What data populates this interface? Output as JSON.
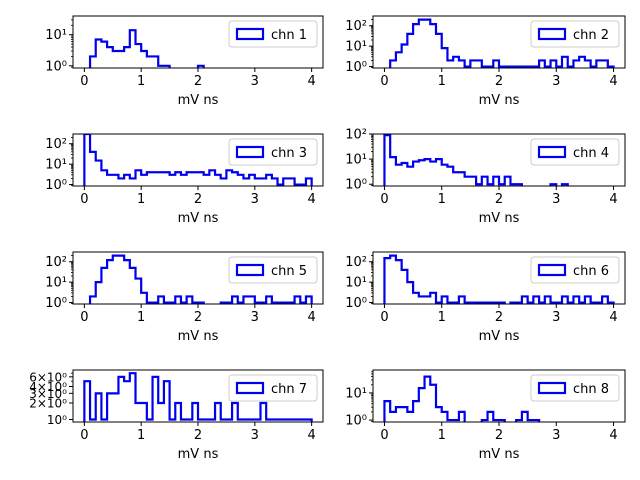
{
  "chart_data": [
    {
      "type": "step-histogram",
      "legend": "chn 1",
      "xlabel": "mV ns",
      "xlim": [
        -0.2,
        4.2
      ],
      "ylog": true,
      "ylim": [
        0.85,
        40
      ],
      "yticks": [
        {
          "v": 1,
          "label": "10⁰"
        },
        {
          "v": 10,
          "label": "10¹"
        }
      ],
      "xticks": [
        0,
        1,
        2,
        3,
        4
      ],
      "bins": {
        "start": 0,
        "width": 0.1
      },
      "values": [
        0,
        2,
        7,
        6,
        4,
        3,
        3,
        4,
        14,
        5,
        3,
        2,
        2,
        1,
        1,
        0,
        0,
        0,
        0,
        0,
        1
      ]
    },
    {
      "type": "step-histogram",
      "legend": "chn 2",
      "xlabel": "mV ns",
      "xlim": [
        -0.2,
        4.2
      ],
      "ylog": true,
      "ylim": [
        0.85,
        300
      ],
      "yticks": [
        {
          "v": 1,
          "label": "10⁰"
        },
        {
          "v": 10,
          "label": "10¹"
        },
        {
          "v": 100,
          "label": "10²"
        }
      ],
      "xticks": [
        0,
        1,
        2,
        3,
        4
      ],
      "bins": {
        "start": 0,
        "width": 0.1
      },
      "values": [
        0,
        2,
        5,
        12,
        40,
        120,
        200,
        200,
        120,
        40,
        8,
        2,
        3,
        2,
        1,
        2,
        2,
        1,
        1,
        2,
        1,
        1,
        1,
        1,
        1,
        1,
        1,
        2,
        1,
        2,
        1,
        3,
        1,
        2,
        3,
        2,
        1,
        2,
        2,
        1
      ]
    },
    {
      "type": "step-histogram",
      "legend": "chn 3",
      "xlabel": "mV ns",
      "xlim": [
        -0.2,
        4.2
      ],
      "ylog": true,
      "ylim": [
        0.85,
        300
      ],
      "yticks": [
        {
          "v": 1,
          "label": "10⁰"
        },
        {
          "v": 10,
          "label": "10¹"
        },
        {
          "v": 100,
          "label": "10²"
        }
      ],
      "xticks": [
        0,
        1,
        2,
        3,
        4
      ],
      "bins": {
        "start": 0,
        "width": 0.1
      },
      "values": [
        300,
        40,
        15,
        5,
        3,
        3,
        2,
        3,
        2,
        5,
        3,
        4,
        4,
        4,
        4,
        3,
        4,
        3,
        4,
        4,
        4,
        3,
        5,
        3,
        2,
        5,
        4,
        3,
        2,
        3,
        2,
        2,
        3,
        2,
        1,
        2,
        2,
        1,
        1,
        2
      ]
    },
    {
      "type": "step-histogram",
      "legend": "chn 4",
      "xlabel": "mV ns",
      "xlim": [
        -0.2,
        4.2
      ],
      "ylog": true,
      "ylim": [
        0.85,
        100
      ],
      "yticks": [
        {
          "v": 1,
          "label": "10⁰"
        },
        {
          "v": 10,
          "label": "10¹"
        },
        {
          "v": 100,
          "label": "10²"
        }
      ],
      "xticks": [
        0,
        1,
        2,
        3,
        4
      ],
      "bins": {
        "start": 0,
        "width": 0.1
      },
      "values": [
        90,
        12,
        6,
        7,
        5,
        8,
        9,
        10,
        8,
        10,
        6,
        5,
        3,
        3,
        2,
        2,
        1,
        2,
        1,
        2,
        1,
        2,
        1,
        1,
        0,
        0,
        0,
        0,
        0,
        1,
        0,
        1
      ]
    },
    {
      "type": "step-histogram",
      "legend": "chn 5",
      "xlabel": "mV ns",
      "xlim": [
        -0.2,
        4.2
      ],
      "ylog": true,
      "ylim": [
        0.85,
        300
      ],
      "yticks": [
        {
          "v": 1,
          "label": "10⁰"
        },
        {
          "v": 10,
          "label": "10¹"
        },
        {
          "v": 100,
          "label": "10²"
        }
      ],
      "xticks": [
        0,
        1,
        2,
        3,
        4
      ],
      "bins": {
        "start": 0,
        "width": 0.1
      },
      "values": [
        0,
        2,
        10,
        50,
        120,
        200,
        200,
        120,
        50,
        15,
        3,
        1,
        1,
        2,
        1,
        1,
        2,
        1,
        2,
        1,
        1,
        0,
        0,
        0,
        1,
        1,
        2,
        1,
        2,
        2,
        1,
        1,
        2,
        1,
        1,
        1,
        1,
        2,
        1,
        2
      ]
    },
    {
      "type": "step-histogram",
      "legend": "chn 6",
      "xlabel": "mV ns",
      "xlim": [
        -0.2,
        4.2
      ],
      "ylog": true,
      "ylim": [
        0.85,
        300
      ],
      "yticks": [
        {
          "v": 1,
          "label": "10⁰"
        },
        {
          "v": 10,
          "label": "10¹"
        },
        {
          "v": 100,
          "label": "10²"
        }
      ],
      "xticks": [
        0,
        1,
        2,
        3,
        4
      ],
      "bins": {
        "start": 0,
        "width": 0.1
      },
      "values": [
        150,
        200,
        120,
        40,
        10,
        3,
        2,
        2,
        3,
        1,
        2,
        1,
        1,
        2,
        1,
        1,
        1,
        1,
        1,
        1,
        1,
        0,
        1,
        1,
        2,
        1,
        2,
        1,
        2,
        1,
        1,
        2,
        1,
        2,
        1,
        2,
        1,
        1,
        2,
        1
      ]
    },
    {
      "type": "step-histogram",
      "legend": "chn 7",
      "xlabel": "mV ns",
      "xlim": [
        -0.2,
        4.2
      ],
      "ylog": true,
      "ylim": [
        0.9,
        8
      ],
      "yticks": [
        {
          "v": 1,
          "label": "10⁰"
        },
        {
          "v": 2,
          "label": "2×10⁰"
        },
        {
          "v": 3,
          "label": "3×10⁰"
        },
        {
          "v": 4,
          "label": "4×10⁰"
        },
        {
          "v": 6,
          "label": "6×10⁰"
        }
      ],
      "xticks": [
        0,
        1,
        2,
        3,
        4
      ],
      "bins": {
        "start": 0,
        "width": 0.1
      },
      "values": [
        5,
        1,
        3,
        1,
        3,
        3,
        6,
        5,
        7,
        2,
        2,
        1,
        6,
        2,
        5,
        1,
        2,
        1,
        1,
        2,
        1,
        1,
        1,
        2,
        1,
        1,
        2,
        1,
        1,
        1,
        1,
        2,
        1,
        1,
        1,
        1,
        1,
        1,
        1,
        1
      ]
    },
    {
      "type": "step-histogram",
      "legend": "chn 8",
      "xlabel": "mV ns",
      "xlim": [
        -0.2,
        4.2
      ],
      "ylog": true,
      "ylim": [
        0.85,
        70
      ],
      "yticks": [
        {
          "v": 1,
          "label": "10⁰"
        },
        {
          "v": 10,
          "label": "10¹"
        }
      ],
      "xticks": [
        0,
        1,
        2,
        3,
        4
      ],
      "bins": {
        "start": 0,
        "width": 0.1
      },
      "values": [
        5,
        2,
        3,
        3,
        2,
        5,
        15,
        40,
        20,
        3,
        2,
        1,
        1,
        2,
        0,
        0,
        0,
        1,
        2,
        1,
        1,
        0,
        0,
        1,
        2,
        1,
        1
      ]
    }
  ],
  "style": {
    "line_color": "#0000ee",
    "frame_color": "#000000"
  }
}
